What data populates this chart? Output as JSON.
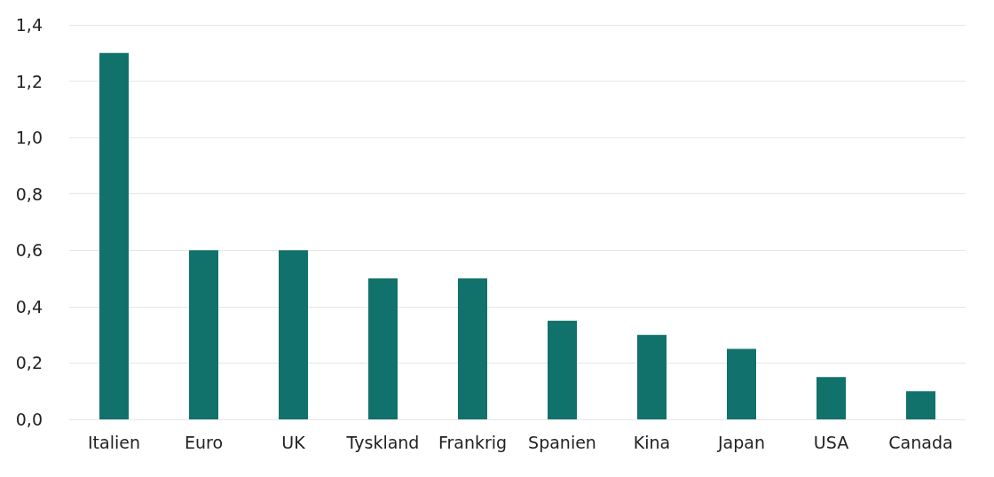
{
  "chart_data": {
    "type": "bar",
    "categories": [
      "Italien",
      "Euro",
      "UK",
      "Tyskland",
      "Frankrig",
      "Spanien",
      "Kina",
      "Japan",
      "USA",
      "Canada"
    ],
    "values": [
      1.3,
      0.6,
      0.6,
      0.5,
      0.5,
      0.35,
      0.3,
      0.25,
      0.15,
      0.1
    ],
    "color": "#11726b",
    "ylim": [
      0,
      1.4
    ],
    "yticks": [
      {
        "value": 0,
        "label": "0,0"
      },
      {
        "value": 0.2,
        "label": "0,2"
      },
      {
        "value": 0.4,
        "label": "0,4"
      },
      {
        "value": 0.6,
        "label": "0,6"
      },
      {
        "value": 0.8,
        "label": "0,8"
      },
      {
        "value": 1.0,
        "label": "1,0"
      },
      {
        "value": 1.2,
        "label": "1,2"
      },
      {
        "value": 1.4,
        "label": "1,4"
      }
    ],
    "grid": "y"
  }
}
